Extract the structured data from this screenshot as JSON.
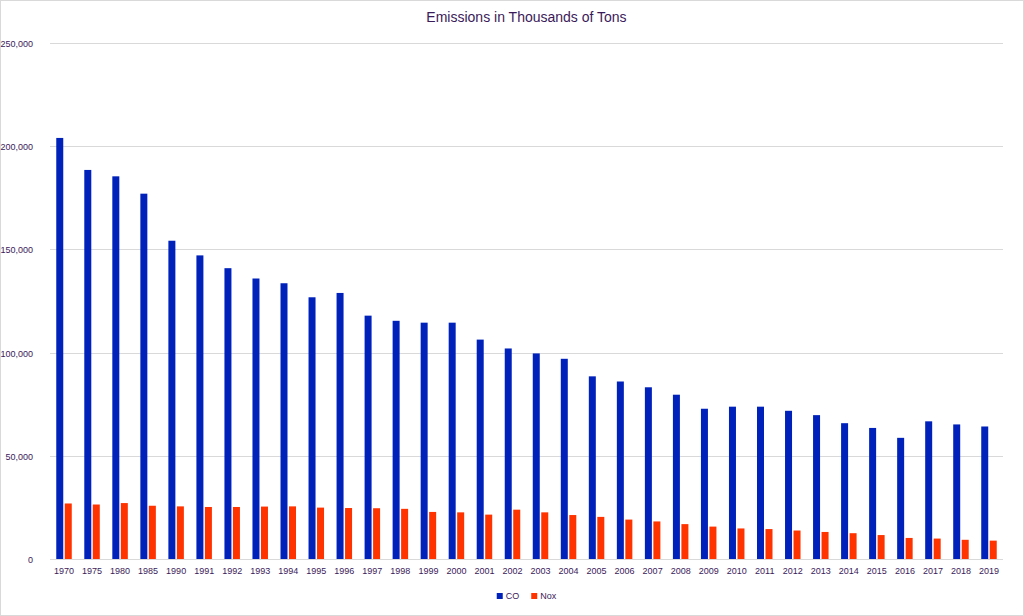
{
  "chart_data": {
    "type": "bar",
    "title": "Emissions in Thousands of Tons",
    "categories": [
      "1970",
      "1975",
      "1980",
      "1985",
      "1990",
      "1991",
      "1992",
      "1993",
      "1994",
      "1995",
      "1996",
      "1997",
      "1998",
      "1999",
      "2000",
      "2001",
      "2002",
      "2003",
      "2004",
      "2005",
      "2006",
      "2007",
      "2008",
      "2009",
      "2010",
      "2011",
      "2012",
      "2013",
      "2014",
      "2015",
      "2016",
      "2017",
      "2018",
      "2019"
    ],
    "series": [
      {
        "name": "CO",
        "color": "#0022bb",
        "values": [
          204000,
          188500,
          185400,
          177000,
          154200,
          147100,
          140900,
          135900,
          133600,
          126800,
          128900,
          117900,
          115400,
          114500,
          114500,
          106300,
          102000,
          99600,
          97000,
          88500,
          86000,
          83200,
          79600,
          72800,
          73800,
          73800,
          71800,
          69700,
          65800,
          63500,
          58700,
          66700,
          65200,
          64200
        ]
      },
      {
        "name": "Nox",
        "color": "#ff3300",
        "values": [
          26900,
          26400,
          27100,
          25800,
          25500,
          25200,
          25200,
          25400,
          25500,
          24900,
          24700,
          24600,
          24300,
          22800,
          22600,
          21500,
          23900,
          22600,
          21300,
          20400,
          19100,
          18200,
          16900,
          15700,
          14800,
          14500,
          13800,
          13100,
          12500,
          11600,
          10200,
          9900,
          9300,
          8900
        ]
      }
    ],
    "ylim": [
      0,
      250000
    ],
    "yticks": [
      0,
      {
        "value": 50000,
        "label": "50,000"
      },
      {
        "value": 100000,
        "label": "100,000"
      },
      {
        "value": 150000,
        "label": "150,000"
      },
      {
        "value": 200000,
        "label": "200,000"
      },
      {
        "value": 250000,
        "label": "250,000"
      }
    ],
    "grid": true,
    "legend": "bottom"
  }
}
